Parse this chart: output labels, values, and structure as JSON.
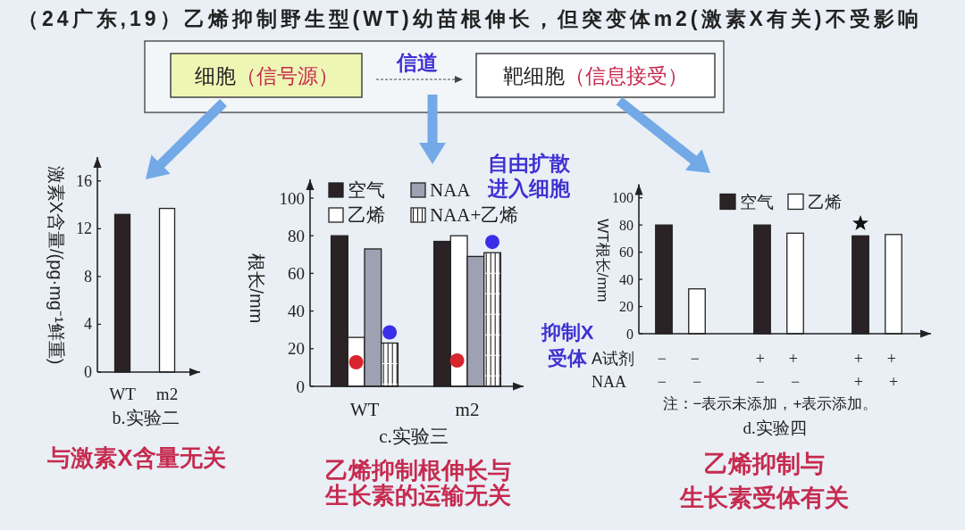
{
  "chart_data": [
    {
      "type": "other",
      "title": "（24广东,19）乙烯抑制野生型(WT)幼苗根伸长，但突变体m2(激素X有关)不受影响",
      "annotations": [
        "细胞（信号源）",
        "信道",
        "靶细胞（信息接受）"
      ]
    },
    {
      "type": "bar",
      "ylabel": "激素X含量/(pg·mg⁻¹鲜重)",
      "categories": [
        "WT",
        "m2"
      ],
      "values": [
        13.2,
        13.7
      ],
      "colors": [
        "#2b2226",
        "#ffffff"
      ],
      "ylim": [
        0,
        18
      ],
      "yticks": [
        0,
        4,
        8,
        12,
        16
      ],
      "annotations": [
        "b.实验二",
        "与激素X含量无关"
      ]
    },
    {
      "type": "bar",
      "ylabel": "根长/mm",
      "categories": [
        "WT",
        "m2"
      ],
      "series": [
        {
          "name": "空气",
          "color": "#2b2226",
          "values": [
            80,
            77
          ]
        },
        {
          "name": "乙烯",
          "color": "#ffffff",
          "values": [
            26,
            80
          ]
        },
        {
          "name": "NAA",
          "color": "#9ea1b2",
          "values": [
            73,
            69
          ]
        },
        {
          "name": "NAA+乙烯",
          "color": "#ffffff",
          "values": [
            23,
            71
          ]
        }
      ],
      "ylim": [
        0,
        110
      ],
      "yticks": [
        0,
        20,
        40,
        60,
        80,
        100
      ],
      "legend": "top left",
      "annotations": [
        "c.实验三",
        "自由扩散进入细胞",
        "乙烯抑制根伸长与生长素的运输无关"
      ]
    },
    {
      "type": "bar",
      "ylabel": "WT根长/mm",
      "categories": [
        "− −\n− −",
        "+ +\n− −",
        "+ +\n+ +"
      ],
      "series": [
        {
          "name": "空气",
          "color": "#2b2226",
          "values": [
            80,
            80,
            72
          ]
        },
        {
          "name": "乙烯",
          "color": "#ffffff",
          "values": [
            33,
            74,
            73
          ]
        }
      ],
      "ylim": [
        0,
        110
      ],
      "yticks": [
        0,
        20,
        40,
        60,
        80,
        100
      ],
      "legend": "top",
      "annotations": [
        "A试剂",
        "NAA",
        "注：−表示未添加，+表示添加。",
        "d.实验四",
        "抑制X受体",
        "乙烯抑制与生长素受体有关"
      ]
    }
  ]
}
